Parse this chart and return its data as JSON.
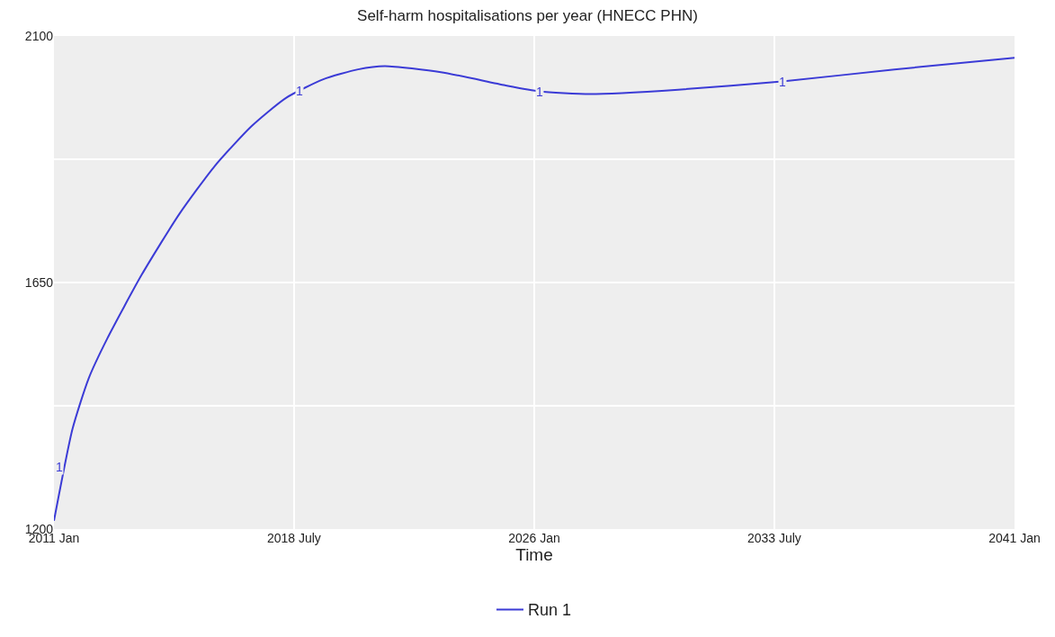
{
  "chart_data": {
    "type": "line",
    "title": "Self-harm hospitalisations per year (HNECC PHN)",
    "xlabel": "Time",
    "x": [
      "2011-01",
      "2011-08",
      "2012-02",
      "2012-09",
      "2013-10",
      "2014-12",
      "2016-01",
      "2017-03",
      "2018-04",
      "2019-06",
      "2020-07",
      "2021-05",
      "2023-02",
      "2025-02",
      "2026-03",
      "2027-10",
      "2030-07",
      "2033-10",
      "2037-04",
      "2041-01"
    ],
    "series": [
      {
        "name": "Run 1",
        "color": "#3b3bd6",
        "values": [
          1215,
          1383,
          1475,
          1548,
          1665,
          1775,
          1861,
          1935,
          1987,
          2021,
          2039,
          2045,
          2034,
          2010,
          1999,
          1994,
          2002,
          2017,
          2039,
          2060
        ]
      }
    ],
    "annotations": [
      {
        "text": "1",
        "x": "2011-03",
        "y": 1313
      },
      {
        "text": "1",
        "x": "2018-09",
        "y": 2000
      },
      {
        "text": "1",
        "x": "2026-03",
        "y": 1999
      },
      {
        "text": "1",
        "x": "2033-10",
        "y": 2017
      }
    ],
    "xlim": [
      "2011-01",
      "2041-01"
    ],
    "xticks": [
      {
        "value": "2011-01",
        "label": "2011 Jan"
      },
      {
        "value": "2018-07",
        "label": "2018 July"
      },
      {
        "value": "2026-01",
        "label": "2026 Jan"
      },
      {
        "value": "2033-07",
        "label": "2033 July"
      },
      {
        "value": "2041-01",
        "label": "2041 Jan"
      }
    ],
    "ylim": [
      1200,
      2100
    ],
    "yticks": [
      1200,
      {
        "value": 1425,
        "label": null
      },
      1650,
      {
        "value": 1875,
        "label": null
      },
      2100
    ],
    "grid": true,
    "legend": "bottom",
    "line_style": "solid",
    "marker": "none"
  }
}
